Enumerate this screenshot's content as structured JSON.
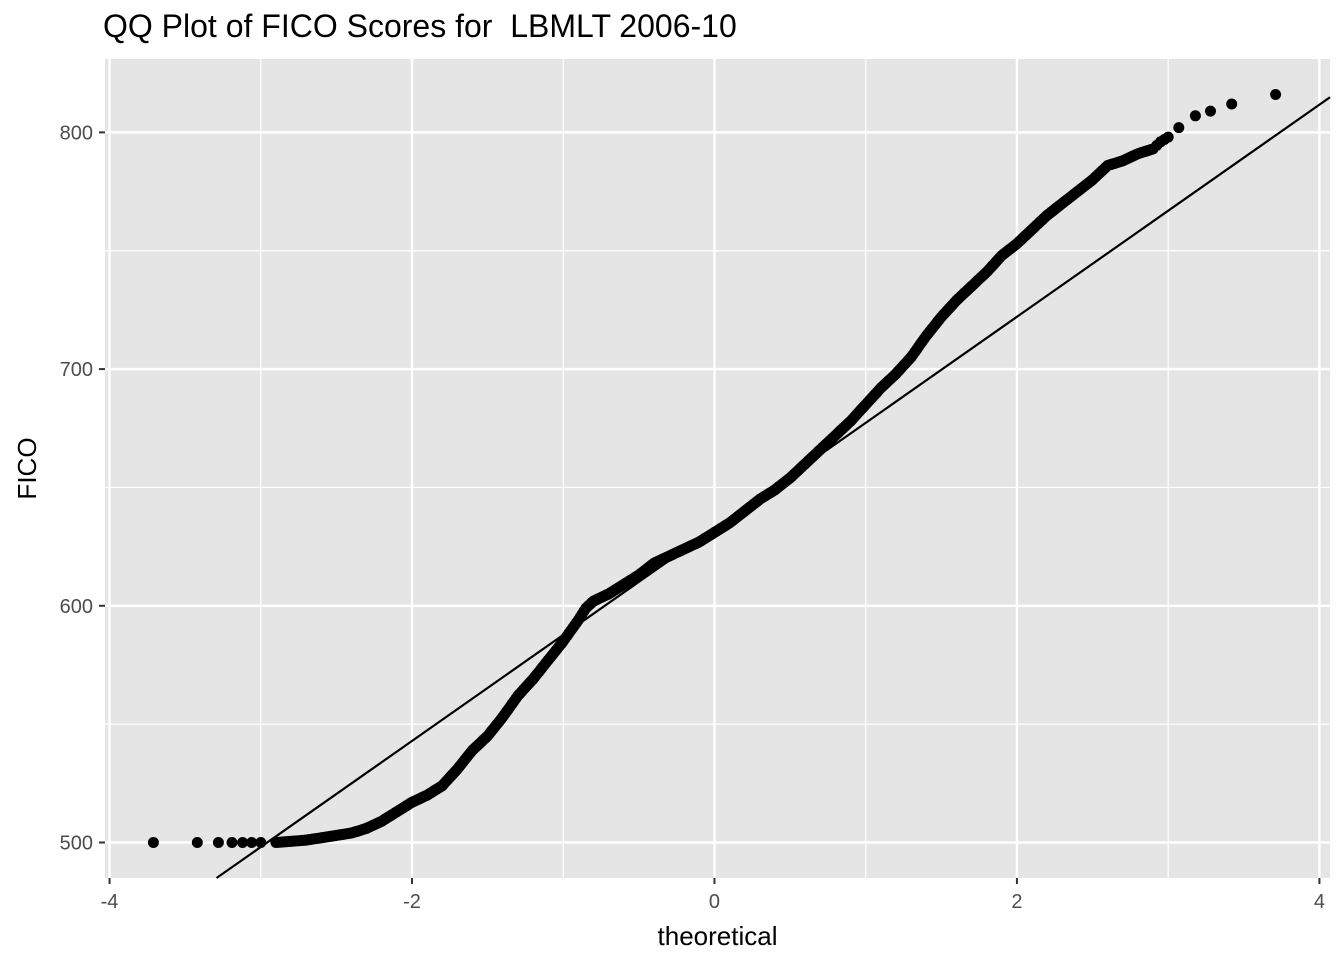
{
  "chart_data": {
    "type": "scatter",
    "title": "QQ Plot of FICO Scores for  LBMLT 2006-10",
    "xlabel": "theoretical",
    "ylabel": "FICO",
    "xlim": [
      -4.03,
      4.07
    ],
    "ylim": [
      485,
      831
    ],
    "x_ticks": [
      -4,
      -2,
      0,
      2,
      4
    ],
    "x_tick_labels": [
      "-4",
      "-2",
      "0",
      "2",
      "4"
    ],
    "y_ticks": [
      500,
      600,
      700,
      800
    ],
    "y_tick_labels": [
      "500",
      "600",
      "700",
      "800"
    ],
    "grid": true,
    "legend": "none",
    "background": "#e5e5e5",
    "point_color": "#000000",
    "reference_line": {
      "intercept": 632.5,
      "slope": 44.8,
      "color": "#000000"
    },
    "sample_quantile_curve": [
      [
        -3.71,
        500
      ],
      [
        -3.42,
        500
      ],
      [
        -3.28,
        500
      ],
      [
        -3.19,
        500
      ],
      [
        -3.12,
        500
      ],
      [
        -3.06,
        500
      ],
      [
        -3.0,
        500
      ],
      [
        -2.9,
        500
      ],
      [
        -2.8,
        500.5
      ],
      [
        -2.7,
        501
      ],
      [
        -2.6,
        502
      ],
      [
        -2.5,
        503
      ],
      [
        -2.4,
        504
      ],
      [
        -2.3,
        506
      ],
      [
        -2.2,
        509
      ],
      [
        -2.1,
        513
      ],
      [
        -2.0,
        517
      ],
      [
        -1.9,
        520
      ],
      [
        -1.8,
        524
      ],
      [
        -1.7,
        531
      ],
      [
        -1.6,
        539
      ],
      [
        -1.5,
        545
      ],
      [
        -1.4,
        553
      ],
      [
        -1.3,
        562
      ],
      [
        -1.2,
        569
      ],
      [
        -1.1,
        577
      ],
      [
        -1.0,
        585
      ],
      [
        -0.9,
        594
      ],
      [
        -0.85,
        599
      ],
      [
        -0.8,
        602
      ],
      [
        -0.7,
        605
      ],
      [
        -0.6,
        609
      ],
      [
        -0.5,
        613
      ],
      [
        -0.4,
        618
      ],
      [
        -0.3,
        621
      ],
      [
        -0.2,
        624
      ],
      [
        -0.1,
        627
      ],
      [
        0.0,
        631
      ],
      [
        0.1,
        635
      ],
      [
        0.2,
        640
      ],
      [
        0.3,
        645
      ],
      [
        0.4,
        649
      ],
      [
        0.5,
        654
      ],
      [
        0.6,
        660
      ],
      [
        0.7,
        666
      ],
      [
        0.8,
        672
      ],
      [
        0.9,
        678
      ],
      [
        1.0,
        685
      ],
      [
        1.1,
        692
      ],
      [
        1.2,
        698
      ],
      [
        1.3,
        705
      ],
      [
        1.4,
        714
      ],
      [
        1.5,
        722
      ],
      [
        1.6,
        729
      ],
      [
        1.7,
        735
      ],
      [
        1.8,
        741
      ],
      [
        1.9,
        748
      ],
      [
        2.0,
        753
      ],
      [
        2.1,
        759
      ],
      [
        2.2,
        765
      ],
      [
        2.3,
        770
      ],
      [
        2.4,
        775
      ],
      [
        2.5,
        780
      ],
      [
        2.6,
        786
      ],
      [
        2.7,
        788
      ],
      [
        2.8,
        791
      ],
      [
        2.9,
        793
      ],
      [
        2.95,
        796
      ],
      [
        3.0,
        798
      ],
      [
        3.07,
        802
      ],
      [
        3.18,
        807
      ],
      [
        3.28,
        809
      ],
      [
        3.42,
        812
      ],
      [
        3.71,
        816
      ]
    ]
  }
}
